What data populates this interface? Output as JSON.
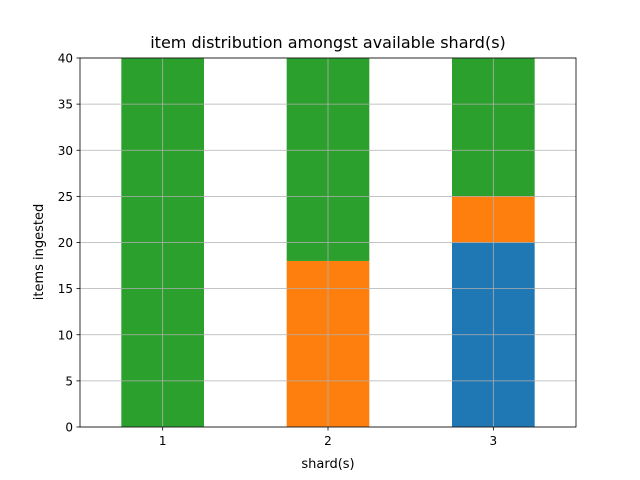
{
  "chart_data": {
    "type": "bar",
    "stacked": true,
    "title": "item distribution amongst available shard(s)",
    "xlabel": "shard(s)",
    "ylabel": "items ingested",
    "categories": [
      "1",
      "2",
      "3"
    ],
    "ylim": [
      0,
      40
    ],
    "yticks": [
      0,
      5,
      10,
      15,
      20,
      25,
      30,
      35,
      40
    ],
    "grid": true,
    "legend": "none",
    "series": [
      {
        "values": [
          0,
          0,
          20
        ],
        "color": "#1f77b4"
      },
      {
        "values": [
          0,
          18,
          5
        ],
        "color": "#ff7f0e"
      },
      {
        "values": [
          40,
          22,
          15
        ],
        "color": "#2ca02c"
      }
    ]
  }
}
